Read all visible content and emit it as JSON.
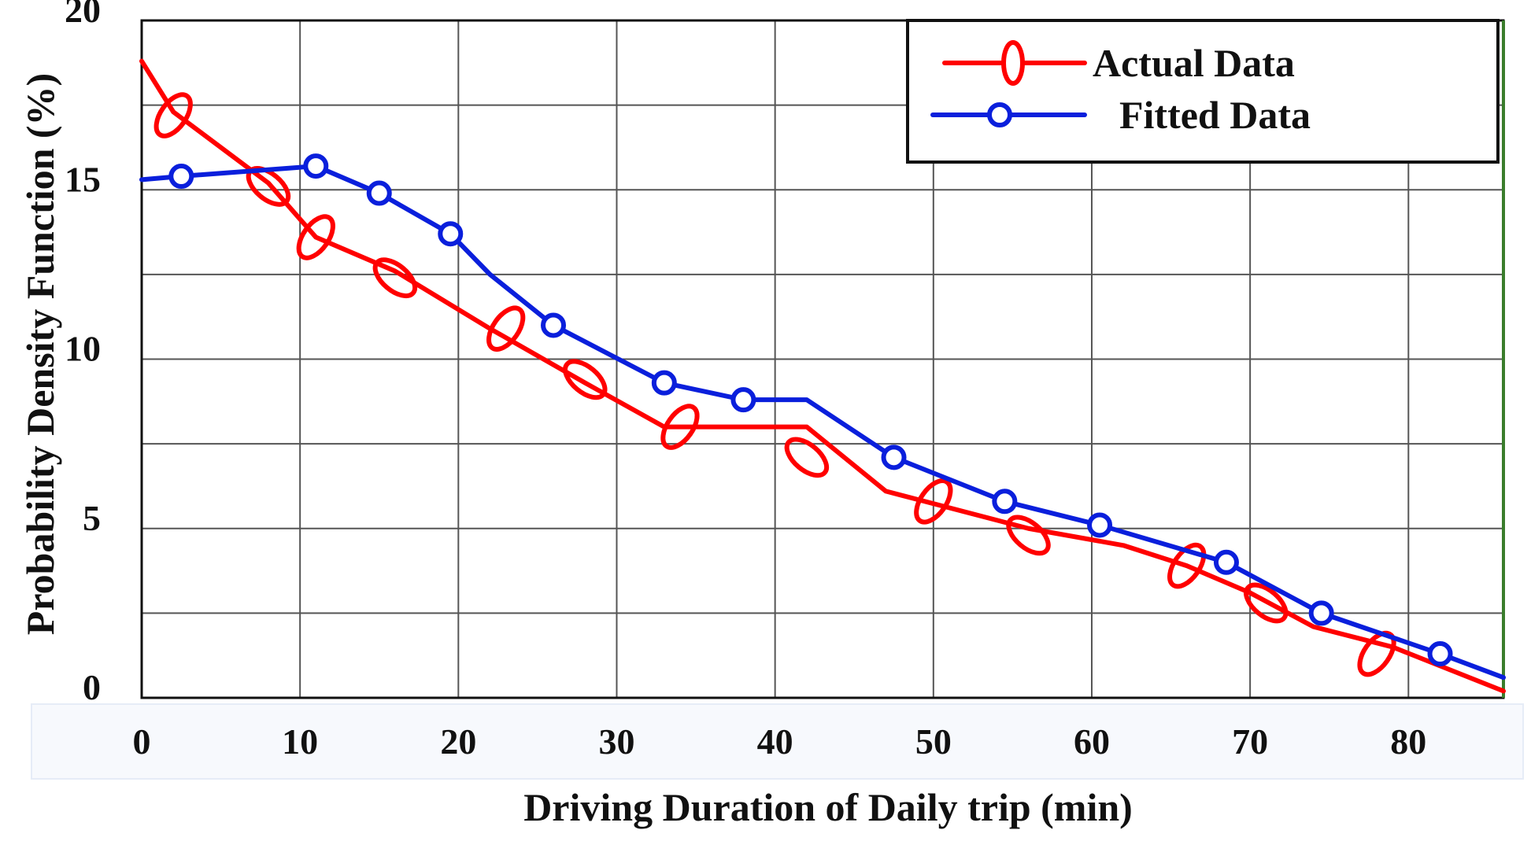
{
  "chart_data": {
    "type": "line",
    "title": "",
    "xlabel": "Driving Duration of Daily trip (min)",
    "ylabel": "Probability Density Function (%)",
    "xlim": [
      0,
      86
    ],
    "ylim": [
      0,
      20
    ],
    "x_ticks": [
      0,
      10,
      20,
      30,
      40,
      50,
      60,
      70,
      80
    ],
    "x_tick_labels": [
      "0",
      "10",
      "20",
      "30",
      "40",
      "50",
      "60",
      "70",
      "80"
    ],
    "y_ticks": [
      0,
      5,
      10,
      15,
      20
    ],
    "y_tick_labels": [
      "0",
      "5",
      "10",
      "15",
      "20"
    ],
    "grid": true,
    "legend_position": "top-right",
    "series": [
      {
        "name": "Actual Data",
        "color": "#ff0000",
        "marker": "ellipse",
        "line_x": [
          0,
          2,
          8,
          11,
          16,
          22,
          28,
          33,
          42,
          47,
          56,
          62,
          66,
          70,
          74,
          79,
          86
        ],
        "line_y": [
          18.8,
          17.3,
          15.2,
          13.6,
          12.6,
          10.9,
          9.3,
          8.0,
          8.0,
          6.1,
          5.0,
          4.5,
          3.9,
          3.1,
          2.1,
          1.5,
          0.2
        ],
        "marker_x": [
          2,
          8,
          11,
          16,
          23,
          28,
          34,
          42,
          50,
          56,
          66,
          71,
          78
        ],
        "marker_y": [
          17.2,
          15.1,
          13.6,
          12.4,
          10.9,
          9.4,
          8.0,
          7.1,
          5.8,
          4.8,
          3.9,
          2.8,
          1.3
        ]
      },
      {
        "name": "Fitted Data",
        "color": "#0a1fdc",
        "marker": "circle",
        "line_x": [
          0,
          2.5,
          11,
          15,
          19.5,
          22,
          26,
          33,
          38,
          42,
          47.5,
          54.5,
          60.5,
          68.5,
          74.5,
          82,
          86
        ],
        "line_y": [
          15.3,
          15.4,
          15.7,
          14.9,
          13.7,
          12.5,
          11.0,
          9.3,
          8.8,
          8.8,
          7.1,
          5.8,
          5.1,
          4.0,
          2.5,
          1.3,
          0.6
        ],
        "marker_x": [
          2.5,
          11,
          15,
          19.5,
          26,
          33,
          38,
          47.5,
          54.5,
          60.5,
          68.5,
          74.5,
          82
        ],
        "marker_y": [
          15.4,
          15.7,
          14.9,
          13.7,
          11.0,
          9.3,
          8.8,
          7.1,
          5.8,
          5.1,
          4.0,
          2.5,
          1.3
        ]
      }
    ]
  }
}
